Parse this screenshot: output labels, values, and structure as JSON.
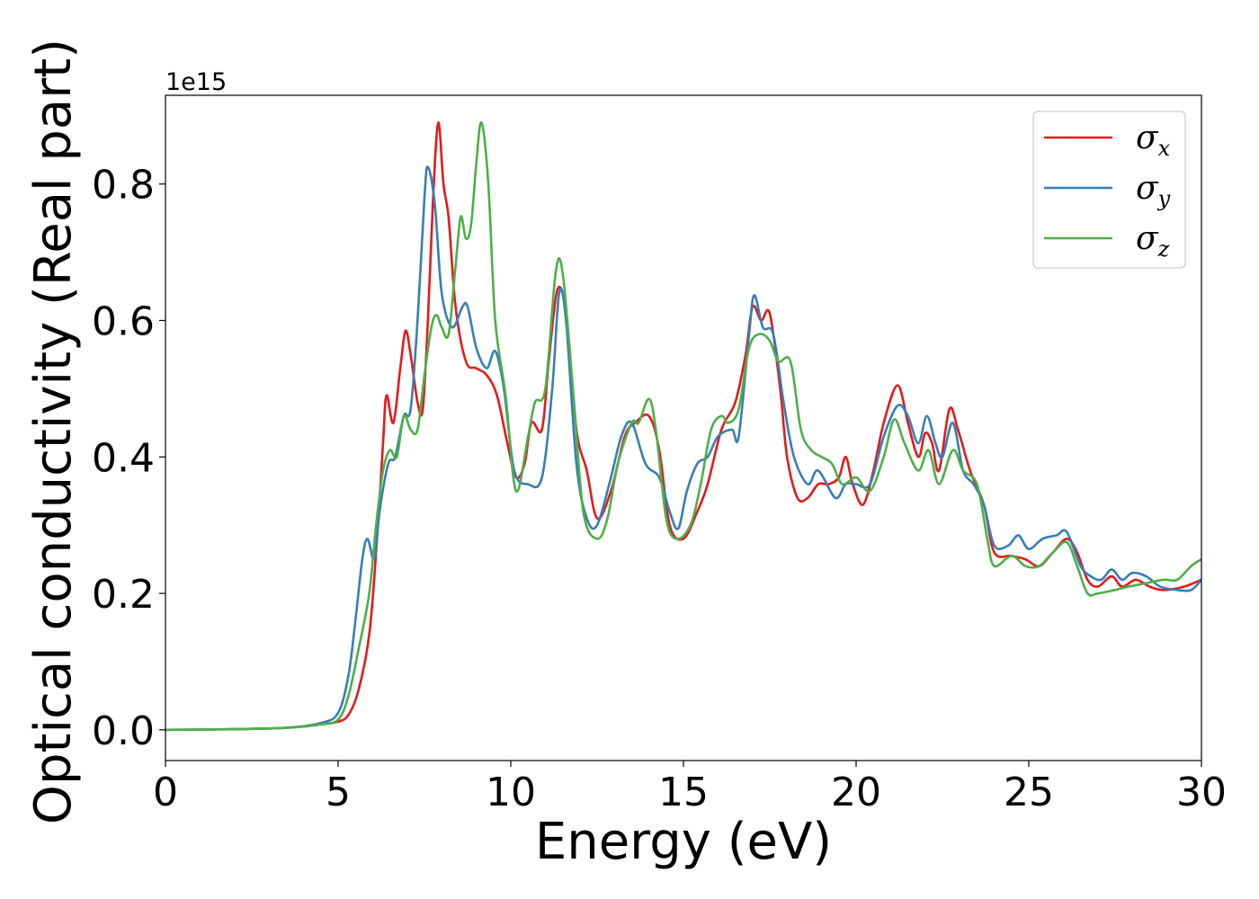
{
  "chart_data": {
    "type": "line",
    "title": "",
    "xlabel": "Energy (eV)",
    "ylabel": "Optical conductivity (Real part)",
    "y_offset_label": "1e15",
    "xlim": [
      0,
      30
    ],
    "ylim": [
      -0.045,
      0.93
    ],
    "x_ticks": [
      0,
      5,
      10,
      15,
      20,
      25,
      30
    ],
    "y_ticks": [
      0.0,
      0.2,
      0.4,
      0.6,
      0.8
    ],
    "x_tick_labels": [
      "0",
      "5",
      "10",
      "15",
      "20",
      "25",
      "30"
    ],
    "y_tick_labels": [
      "0.0",
      "0.2",
      "0.4",
      "0.6",
      "0.8"
    ],
    "grid": false,
    "legend_position": "top-right",
    "series": [
      {
        "name": "σx",
        "symbol": "σ",
        "subscript": "x",
        "color": "#e41a1c",
        "points": [
          [
            0,
            0
          ],
          [
            2,
            0.001
          ],
          [
            3.5,
            0.003
          ],
          [
            4.5,
            0.008
          ],
          [
            5.0,
            0.012
          ],
          [
            5.3,
            0.022
          ],
          [
            5.6,
            0.06
          ],
          [
            5.9,
            0.14
          ],
          [
            6.1,
            0.26
          ],
          [
            6.3,
            0.42
          ],
          [
            6.4,
            0.49
          ],
          [
            6.6,
            0.45
          ],
          [
            6.8,
            0.53
          ],
          [
            6.95,
            0.585
          ],
          [
            7.1,
            0.55
          ],
          [
            7.3,
            0.48
          ],
          [
            7.45,
            0.47
          ],
          [
            7.6,
            0.6
          ],
          [
            7.75,
            0.78
          ],
          [
            7.9,
            0.89
          ],
          [
            8.05,
            0.8
          ],
          [
            8.2,
            0.75
          ],
          [
            8.4,
            0.62
          ],
          [
            8.7,
            0.54
          ],
          [
            9.0,
            0.53
          ],
          [
            9.3,
            0.52
          ],
          [
            9.6,
            0.49
          ],
          [
            9.9,
            0.42
          ],
          [
            10.15,
            0.37
          ],
          [
            10.4,
            0.39
          ],
          [
            10.6,
            0.45
          ],
          [
            10.9,
            0.44
          ],
          [
            11.1,
            0.54
          ],
          [
            11.35,
            0.645
          ],
          [
            11.6,
            0.61
          ],
          [
            11.9,
            0.44
          ],
          [
            12.2,
            0.38
          ],
          [
            12.5,
            0.31
          ],
          [
            12.9,
            0.35
          ],
          [
            13.3,
            0.43
          ],
          [
            13.6,
            0.45
          ],
          [
            14.0,
            0.46
          ],
          [
            14.3,
            0.41
          ],
          [
            14.6,
            0.3
          ],
          [
            15.0,
            0.28
          ],
          [
            15.4,
            0.32
          ],
          [
            15.7,
            0.36
          ],
          [
            16.1,
            0.44
          ],
          [
            16.5,
            0.48
          ],
          [
            16.8,
            0.55
          ],
          [
            17.0,
            0.62
          ],
          [
            17.25,
            0.6
          ],
          [
            17.5,
            0.61
          ],
          [
            17.8,
            0.5
          ],
          [
            18.0,
            0.4
          ],
          [
            18.3,
            0.34
          ],
          [
            18.6,
            0.34
          ],
          [
            18.9,
            0.36
          ],
          [
            19.2,
            0.36
          ],
          [
            19.5,
            0.37
          ],
          [
            19.7,
            0.4
          ],
          [
            19.9,
            0.36
          ],
          [
            20.2,
            0.33
          ],
          [
            20.5,
            0.38
          ],
          [
            20.8,
            0.45
          ],
          [
            21.2,
            0.505
          ],
          [
            21.5,
            0.45
          ],
          [
            21.8,
            0.4
          ],
          [
            22.0,
            0.435
          ],
          [
            22.2,
            0.42
          ],
          [
            22.4,
            0.38
          ],
          [
            22.7,
            0.47
          ],
          [
            22.95,
            0.44
          ],
          [
            23.3,
            0.38
          ],
          [
            23.7,
            0.33
          ],
          [
            24.0,
            0.26
          ],
          [
            24.5,
            0.255
          ],
          [
            24.9,
            0.25
          ],
          [
            25.3,
            0.24
          ],
          [
            25.7,
            0.26
          ],
          [
            26.1,
            0.28
          ],
          [
            26.4,
            0.26
          ],
          [
            26.7,
            0.22
          ],
          [
            27.0,
            0.21
          ],
          [
            27.4,
            0.225
          ],
          [
            27.7,
            0.21
          ],
          [
            28.1,
            0.22
          ],
          [
            28.5,
            0.21
          ],
          [
            28.9,
            0.205
          ],
          [
            29.5,
            0.21
          ],
          [
            30,
            0.22
          ]
        ]
      },
      {
        "name": "σy",
        "symbol": "σ",
        "subscript": "y",
        "color": "#377eb8",
        "points": [
          [
            0,
            0
          ],
          [
            2,
            0.001
          ],
          [
            3.5,
            0.003
          ],
          [
            4.5,
            0.01
          ],
          [
            5.0,
            0.025
          ],
          [
            5.3,
            0.08
          ],
          [
            5.5,
            0.16
          ],
          [
            5.7,
            0.25
          ],
          [
            5.85,
            0.28
          ],
          [
            6.05,
            0.25
          ],
          [
            6.2,
            0.32
          ],
          [
            6.45,
            0.39
          ],
          [
            6.65,
            0.4
          ],
          [
            6.9,
            0.46
          ],
          [
            7.1,
            0.47
          ],
          [
            7.3,
            0.6
          ],
          [
            7.5,
            0.78
          ],
          [
            7.6,
            0.825
          ],
          [
            7.8,
            0.77
          ],
          [
            8.0,
            0.64
          ],
          [
            8.3,
            0.59
          ],
          [
            8.6,
            0.62
          ],
          [
            8.75,
            0.62
          ],
          [
            9.0,
            0.56
          ],
          [
            9.3,
            0.53
          ],
          [
            9.55,
            0.555
          ],
          [
            9.8,
            0.5
          ],
          [
            10.1,
            0.38
          ],
          [
            10.5,
            0.36
          ],
          [
            10.9,
            0.37
          ],
          [
            11.2,
            0.5
          ],
          [
            11.4,
            0.64
          ],
          [
            11.6,
            0.6
          ],
          [
            11.9,
            0.39
          ],
          [
            12.2,
            0.31
          ],
          [
            12.5,
            0.3
          ],
          [
            12.9,
            0.37
          ],
          [
            13.2,
            0.43
          ],
          [
            13.5,
            0.45
          ],
          [
            13.9,
            0.39
          ],
          [
            14.3,
            0.37
          ],
          [
            14.6,
            0.32
          ],
          [
            14.85,
            0.295
          ],
          [
            15.1,
            0.35
          ],
          [
            15.4,
            0.39
          ],
          [
            15.7,
            0.4
          ],
          [
            16.0,
            0.43
          ],
          [
            16.4,
            0.44
          ],
          [
            16.6,
            0.43
          ],
          [
            16.9,
            0.58
          ],
          [
            17.05,
            0.637
          ],
          [
            17.3,
            0.59
          ],
          [
            17.6,
            0.58
          ],
          [
            17.9,
            0.48
          ],
          [
            18.2,
            0.4
          ],
          [
            18.6,
            0.36
          ],
          [
            18.9,
            0.38
          ],
          [
            19.4,
            0.34
          ],
          [
            19.7,
            0.36
          ],
          [
            20.0,
            0.36
          ],
          [
            20.4,
            0.36
          ],
          [
            20.8,
            0.43
          ],
          [
            21.2,
            0.475
          ],
          [
            21.5,
            0.46
          ],
          [
            21.8,
            0.42
          ],
          [
            22.05,
            0.46
          ],
          [
            22.3,
            0.42
          ],
          [
            22.5,
            0.4
          ],
          [
            22.8,
            0.45
          ],
          [
            23.1,
            0.38
          ],
          [
            23.4,
            0.36
          ],
          [
            23.7,
            0.33
          ],
          [
            24.0,
            0.27
          ],
          [
            24.4,
            0.27
          ],
          [
            24.7,
            0.285
          ],
          [
            25.0,
            0.265
          ],
          [
            25.4,
            0.28
          ],
          [
            25.8,
            0.285
          ],
          [
            26.1,
            0.29
          ],
          [
            26.5,
            0.24
          ],
          [
            26.8,
            0.225
          ],
          [
            27.1,
            0.22
          ],
          [
            27.4,
            0.235
          ],
          [
            27.7,
            0.22
          ],
          [
            28.0,
            0.23
          ],
          [
            28.4,
            0.225
          ],
          [
            28.8,
            0.21
          ],
          [
            29.3,
            0.205
          ],
          [
            29.7,
            0.205
          ],
          [
            30,
            0.22
          ]
        ]
      },
      {
        "name": "σz",
        "symbol": "σ",
        "subscript": "z",
        "color": "#4daf4a",
        "points": [
          [
            0,
            0
          ],
          [
            2,
            0.001
          ],
          [
            3.5,
            0.003
          ],
          [
            4.5,
            0.008
          ],
          [
            5.0,
            0.015
          ],
          [
            5.3,
            0.05
          ],
          [
            5.6,
            0.12
          ],
          [
            5.9,
            0.2
          ],
          [
            6.1,
            0.3
          ],
          [
            6.3,
            0.38
          ],
          [
            6.5,
            0.41
          ],
          [
            6.7,
            0.4
          ],
          [
            6.9,
            0.46
          ],
          [
            7.1,
            0.44
          ],
          [
            7.3,
            0.44
          ],
          [
            7.5,
            0.52
          ],
          [
            7.7,
            0.59
          ],
          [
            7.85,
            0.608
          ],
          [
            8.0,
            0.59
          ],
          [
            8.2,
            0.58
          ],
          [
            8.4,
            0.68
          ],
          [
            8.55,
            0.752
          ],
          [
            8.7,
            0.72
          ],
          [
            8.85,
            0.74
          ],
          [
            9.0,
            0.83
          ],
          [
            9.15,
            0.89
          ],
          [
            9.35,
            0.8
          ],
          [
            9.55,
            0.6
          ],
          [
            9.85,
            0.49
          ],
          [
            10.15,
            0.35
          ],
          [
            10.5,
            0.43
          ],
          [
            10.7,
            0.48
          ],
          [
            11.0,
            0.5
          ],
          [
            11.3,
            0.67
          ],
          [
            11.5,
            0.67
          ],
          [
            11.8,
            0.5
          ],
          [
            12.1,
            0.32
          ],
          [
            12.5,
            0.28
          ],
          [
            12.8,
            0.31
          ],
          [
            13.1,
            0.39
          ],
          [
            13.5,
            0.45
          ],
          [
            13.7,
            0.45
          ],
          [
            14.0,
            0.485
          ],
          [
            14.2,
            0.44
          ],
          [
            14.5,
            0.31
          ],
          [
            14.8,
            0.28
          ],
          [
            15.2,
            0.3
          ],
          [
            15.5,
            0.36
          ],
          [
            15.8,
            0.44
          ],
          [
            16.1,
            0.46
          ],
          [
            16.3,
            0.45
          ],
          [
            16.6,
            0.47
          ],
          [
            16.9,
            0.56
          ],
          [
            17.2,
            0.58
          ],
          [
            17.5,
            0.57
          ],
          [
            17.75,
            0.54
          ],
          [
            18.1,
            0.54
          ],
          [
            18.4,
            0.44
          ],
          [
            18.7,
            0.41
          ],
          [
            19.0,
            0.4
          ],
          [
            19.3,
            0.39
          ],
          [
            19.6,
            0.36
          ],
          [
            20.0,
            0.37
          ],
          [
            20.4,
            0.35
          ],
          [
            20.8,
            0.4
          ],
          [
            21.1,
            0.455
          ],
          [
            21.4,
            0.42
          ],
          [
            21.8,
            0.38
          ],
          [
            22.1,
            0.41
          ],
          [
            22.4,
            0.36
          ],
          [
            22.8,
            0.41
          ],
          [
            23.1,
            0.38
          ],
          [
            23.5,
            0.36
          ],
          [
            23.8,
            0.28
          ],
          [
            24.0,
            0.24
          ],
          [
            24.5,
            0.255
          ],
          [
            24.9,
            0.24
          ],
          [
            25.3,
            0.24
          ],
          [
            25.7,
            0.26
          ],
          [
            26.1,
            0.275
          ],
          [
            26.4,
            0.24
          ],
          [
            26.7,
            0.2
          ],
          [
            27.0,
            0.2
          ],
          [
            27.5,
            0.205
          ],
          [
            27.9,
            0.21
          ],
          [
            28.4,
            0.215
          ],
          [
            28.9,
            0.22
          ],
          [
            29.3,
            0.22
          ],
          [
            29.7,
            0.24
          ],
          [
            30,
            0.25
          ]
        ]
      }
    ]
  }
}
